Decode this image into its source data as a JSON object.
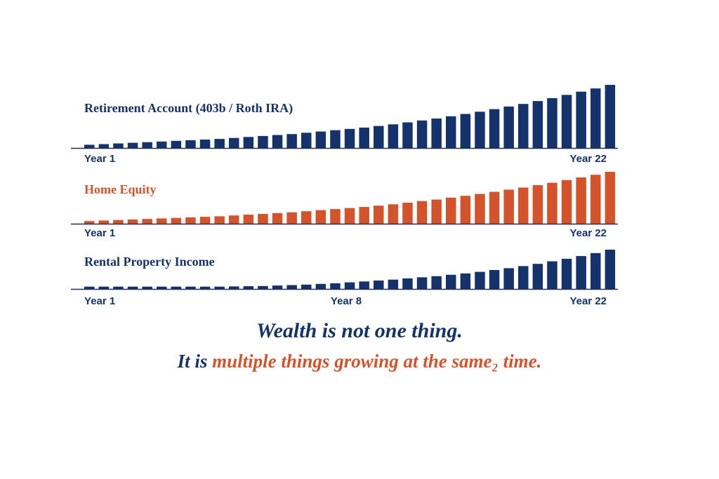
{
  "colors": {
    "navy": "#14336b",
    "orange": "#d4532a",
    "axis": "#1f2f55",
    "background": "#ffffff"
  },
  "chart_data": [
    {
      "type": "bar",
      "title": "Retirement Account (403b / Roth IRA)",
      "color": "navy",
      "tick_labels": [
        "Year 1",
        "Year 22"
      ],
      "values": [
        1.0,
        1.2,
        1.4,
        1.6,
        1.8,
        2.0,
        2.2,
        2.4,
        2.6,
        2.8,
        3.1,
        3.4,
        3.7,
        4.0,
        4.3,
        4.7,
        5.1,
        5.5,
        5.9,
        6.3,
        6.8,
        7.3,
        7.9,
        8.5,
        9.1,
        9.8,
        10.5,
        11.2,
        12.0,
        12.8,
        13.6,
        14.5,
        15.4,
        16.4,
        17.4,
        18.4,
        19.5
      ]
    },
    {
      "type": "bar",
      "title": "Home Equity",
      "color": "orange",
      "tick_labels": [
        "Year 1",
        "Year 22"
      ],
      "values": [
        1.0,
        1.2,
        1.4,
        1.6,
        1.8,
        2.0,
        2.2,
        2.4,
        2.6,
        2.8,
        3.1,
        3.4,
        3.7,
        4.0,
        4.3,
        4.7,
        5.1,
        5.5,
        5.9,
        6.3,
        6.8,
        7.3,
        7.9,
        8.5,
        9.1,
        9.8,
        10.5,
        11.2,
        12.0,
        12.8,
        13.6,
        14.5,
        15.4,
        16.4,
        17.4,
        18.4,
        19.5
      ]
    },
    {
      "type": "bar",
      "title": "Rental Property Income",
      "color": "navy",
      "tick_labels": [
        "Year 1",
        "Year 8",
        "Year 22"
      ],
      "values": [
        1.0,
        1.0,
        1.0,
        1.0,
        1.0,
        1.0,
        1.0,
        1.0,
        1.0,
        1.0,
        1.1,
        1.2,
        1.3,
        1.5,
        1.7,
        1.9,
        2.2,
        2.5,
        2.9,
        3.3,
        3.7,
        4.1,
        4.6,
        5.1,
        5.6,
        6.2,
        6.8,
        7.5,
        8.3,
        9.1,
        10.0,
        11.0,
        12.1,
        13.2,
        14.4,
        15.7,
        17.2
      ]
    }
  ],
  "tagline": {
    "line1": "Wealth is not one thing.",
    "line2_prefix": "It is ",
    "line2_highlight": "multiple things growing at the same₂ time."
  }
}
